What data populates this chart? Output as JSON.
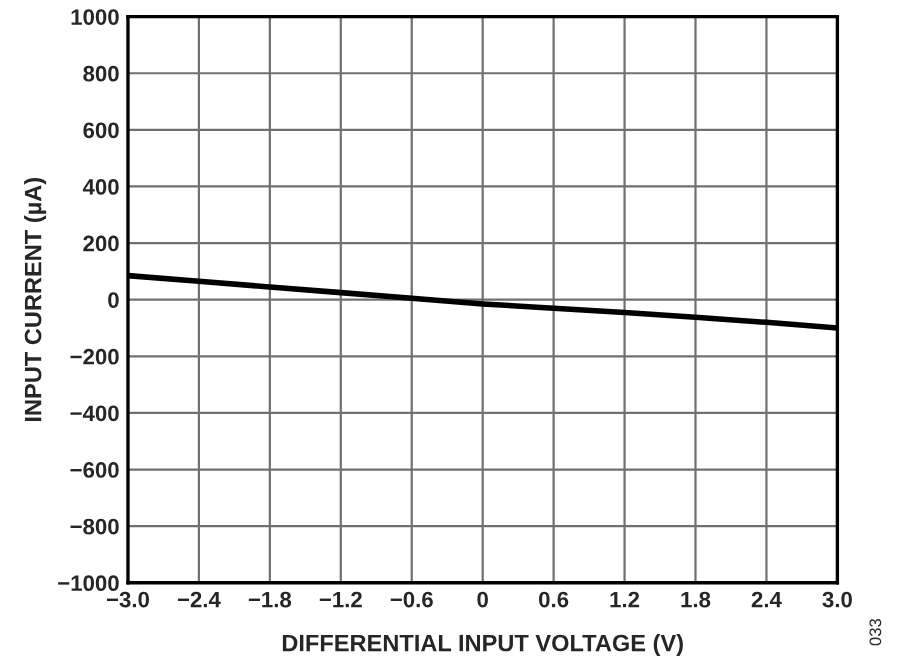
{
  "chart_data": {
    "type": "line",
    "xlabel": "DIFFERENTIAL INPUT VOLTAGE (V)",
    "ylabel": "INPUT CURRENT (µA)",
    "x": [
      -3.0,
      -2.4,
      -1.8,
      -1.2,
      -0.6,
      0,
      0.6,
      1.2,
      1.8,
      2.4,
      3.0
    ],
    "series": [
      {
        "color": "#000000",
        "values": [
          85,
          65,
          45,
          25,
          5,
          -15,
          -30,
          -45,
          -62,
          -80,
          -100
        ]
      }
    ],
    "xlim": [
      -3.0,
      3.0
    ],
    "ylim": [
      -1000,
      1000
    ],
    "xticks": [
      {
        "value": -3.0,
        "label": "−3.0"
      },
      {
        "value": -2.4,
        "label": "−2.4"
      },
      {
        "value": -1.8,
        "label": "−1.8"
      },
      {
        "value": -1.2,
        "label": "−1.2"
      },
      {
        "value": -0.6,
        "label": "−0.6"
      },
      0,
      {
        "value": 0.6,
        "label": "0.6"
      },
      {
        "value": 1.2,
        "label": "1.2"
      },
      {
        "value": 1.8,
        "label": "1.8"
      },
      {
        "value": 2.4,
        "label": "2.4"
      },
      {
        "value": 3.0,
        "label": "3.0"
      }
    ],
    "yticks": [
      {
        "value": -1000,
        "label": "−1000"
      },
      {
        "value": -800,
        "label": "−800"
      },
      {
        "value": -600,
        "label": "−600"
      },
      {
        "value": -400,
        "label": "−400"
      },
      {
        "value": -200,
        "label": "−200"
      },
      0,
      200,
      400,
      600,
      800,
      1000
    ],
    "grid": true,
    "annotations": [
      "033"
    ]
  }
}
